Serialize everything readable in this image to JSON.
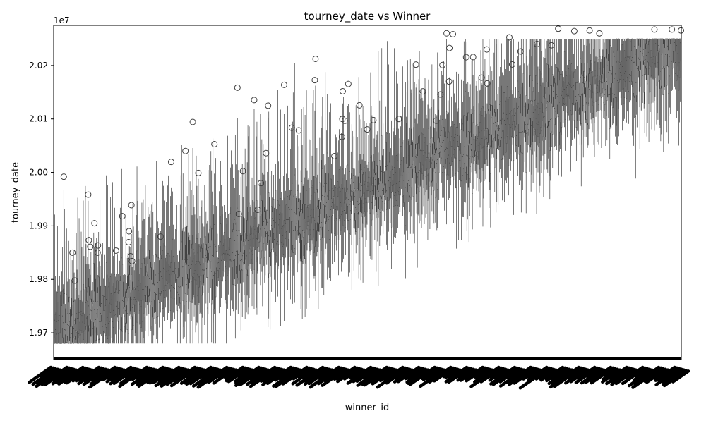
{
  "chart_data": {
    "type": "box",
    "title": "tourney_date vs Winner",
    "xlabel": "winner_id",
    "ylabel": "tourney_date",
    "y_offset_label": "1e7",
    "ylim": [
      19650000,
      20275000
    ],
    "y_ticks": [
      19700000,
      19800000,
      19900000,
      20000000,
      20100000,
      20200000
    ],
    "y_tick_labels": [
      "1.97",
      "1.98",
      "1.99",
      "2.00",
      "2.01",
      "2.02"
    ],
    "x_tick_labels_note": "several thousand overlapping rotated winner_id labels, unreadable",
    "n_categories_estimate": 900,
    "trend": {
      "description": "box medians rise roughly linearly with winner_id",
      "median_start": 19700000,
      "median_end": 20235000,
      "whisker_low_start": 19680000,
      "whisker_high_end": 20250000
    },
    "notable_outliers": [
      {
        "x_fraction": 0.21,
        "y": 20040000
      },
      {
        "x_fraction": 0.12,
        "y": 19890000
      },
      {
        "x_fraction": 0.17,
        "y": 19880000
      },
      {
        "x_fraction": 0.33,
        "y": 19980000
      },
      {
        "x_fraction": 0.46,
        "y": 20100000
      },
      {
        "x_fraction": 0.55,
        "y": 20100000
      },
      {
        "x_fraction": 0.63,
        "y": 20170000
      },
      {
        "x_fraction": 0.69,
        "y": 20230000
      },
      {
        "x_fraction": 0.77,
        "y": 20240000
      },
      {
        "x_fraction": 0.03,
        "y": 19850000
      },
      {
        "x_fraction": 0.07,
        "y": 19850000
      }
    ],
    "colors": {
      "box_line": "#3f3f3f",
      "axis": "#000000",
      "background": "#ffffff"
    }
  }
}
